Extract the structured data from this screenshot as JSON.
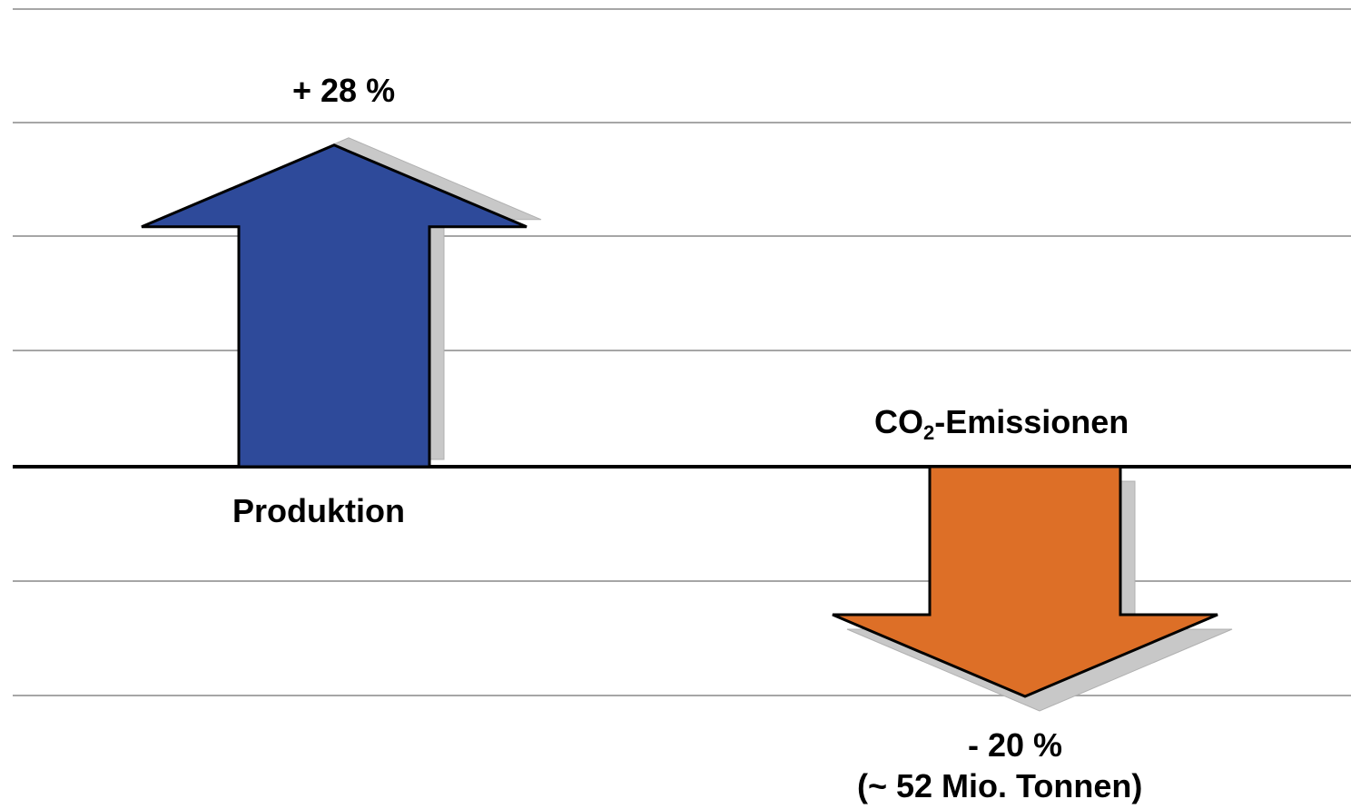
{
  "chart_data": {
    "type": "bar",
    "categories": [
      "Produktion",
      "CO2-Emissionen"
    ],
    "values": [
      28,
      -20
    ],
    "unit": "%",
    "data_labels": [
      "+ 28 %",
      "- 20 %"
    ],
    "annotation": "(~ 52 Mio. Tonnen)",
    "ylim": [
      -25,
      40
    ],
    "grid": true,
    "colors": [
      "#2E4A9A",
      "#DD6F27"
    ]
  },
  "labels": {
    "production": "Produktion",
    "production_value": "+ 28 %",
    "co2_prefix": "CO",
    "co2_sub": "2",
    "co2_suffix": "-Emissionen",
    "co2_value": "- 20 %",
    "co2_note": "(~ 52 Mio. Tonnen)"
  }
}
